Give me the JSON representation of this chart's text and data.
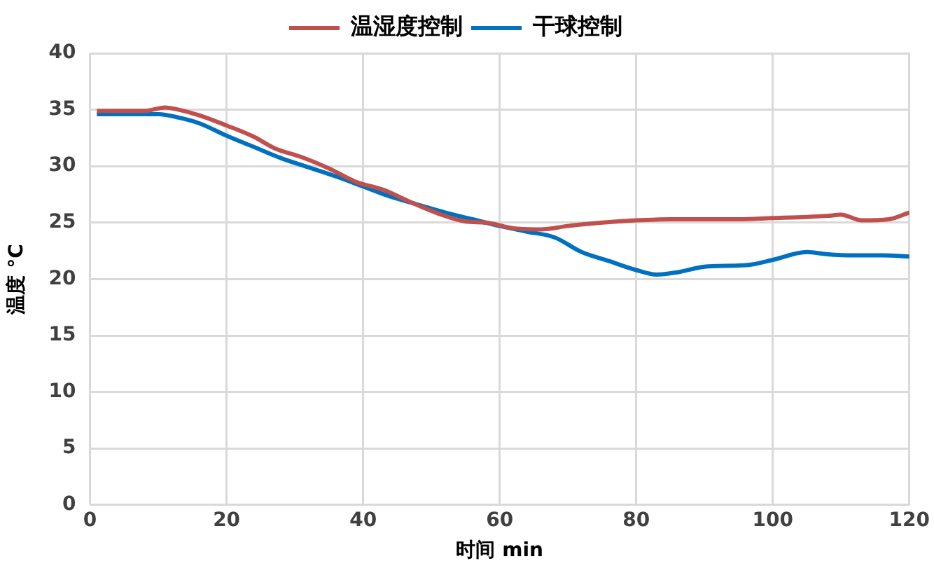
{
  "chart_data": {
    "type": "line",
    "xlabel": "时间 min",
    "ylabel": "温度 °C",
    "xlim": [
      0,
      120
    ],
    "xticks": [
      0,
      20,
      40,
      60,
      80,
      100,
      120
    ],
    "ylim": [
      0,
      40
    ],
    "yticks": [
      0,
      5,
      10,
      15,
      20,
      25,
      30,
      35,
      40
    ],
    "grid": true,
    "legend": "top",
    "marker": "none",
    "line_style": "solid",
    "series": [
      {
        "name": "温湿度控制",
        "color": "#c0504d",
        "x": [
          1,
          5,
          8,
          11,
          13,
          16,
          20,
          24,
          27,
          31,
          35,
          39,
          43,
          47,
          51,
          55,
          58,
          62,
          66,
          70,
          75,
          80,
          85,
          90,
          95,
          100,
          105,
          108,
          110,
          113,
          117,
          120
        ],
        "values": [
          34.9,
          34.9,
          34.9,
          35.2,
          35.0,
          34.5,
          33.6,
          32.6,
          31.6,
          30.8,
          29.8,
          28.6,
          27.9,
          26.8,
          25.8,
          25.1,
          25.0,
          24.5,
          24.4,
          24.7,
          25.0,
          25.2,
          25.3,
          25.3,
          25.3,
          25.4,
          25.5,
          25.6,
          25.7,
          25.2,
          25.3,
          25.9
        ]
      },
      {
        "name": "干球控制",
        "color": "#0070c0",
        "x": [
          1,
          5,
          10,
          13,
          16,
          20,
          24,
          28,
          32,
          36,
          40,
          44,
          48,
          52,
          56,
          60,
          64,
          68,
          72,
          76,
          80,
          83,
          86,
          90,
          95,
          97,
          100,
          105,
          108,
          112,
          116,
          120
        ],
        "values": [
          34.6,
          34.6,
          34.6,
          34.3,
          33.8,
          32.7,
          31.7,
          30.7,
          29.9,
          29.1,
          28.2,
          27.3,
          26.6,
          25.9,
          25.3,
          24.7,
          24.2,
          23.7,
          22.4,
          21.6,
          20.8,
          20.4,
          20.6,
          21.1,
          21.2,
          21.3,
          21.7,
          22.4,
          22.2,
          22.1,
          22.1,
          22.0
        ]
      }
    ]
  }
}
